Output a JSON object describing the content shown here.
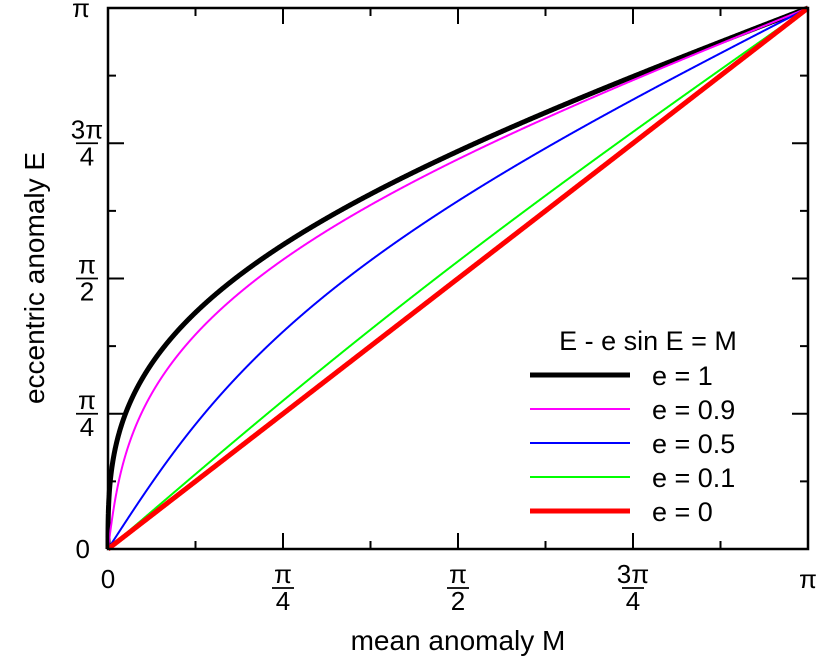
{
  "chart_data": {
    "type": "line",
    "title": "",
    "xlabel": "mean anomaly M",
    "ylabel": "eccentric anomaly E",
    "xlim": [
      0,
      3.14159265
    ],
    "ylim": [
      0,
      3.14159265
    ],
    "grid": false,
    "legend": {
      "position": "bottom-right",
      "title": "E - e sin E = M"
    },
    "x_ticks": [
      {
        "value": 0,
        "label": "0",
        "num": "",
        "den": ""
      },
      {
        "value": 0.785398,
        "label": "",
        "num": "π",
        "den": "4"
      },
      {
        "value": 1.570796,
        "label": "",
        "num": "π",
        "den": "2"
      },
      {
        "value": 2.356194,
        "label": "",
        "num": "3π",
        "den": "4"
      },
      {
        "value": 3.141593,
        "label": "π",
        "num": "",
        "den": ""
      }
    ],
    "y_ticks": [
      {
        "value": 0,
        "label": "0",
        "num": "",
        "den": ""
      },
      {
        "value": 0.785398,
        "label": "",
        "num": "π",
        "den": "4"
      },
      {
        "value": 1.570796,
        "label": "",
        "num": "π",
        "den": "2"
      },
      {
        "value": 2.356194,
        "label": "",
        "num": "3π",
        "den": "4"
      },
      {
        "value": 3.141593,
        "label": "π",
        "num": "",
        "den": ""
      }
    ],
    "series": [
      {
        "name": "e = 1",
        "eccentricity": 1,
        "color": "#000000",
        "width": 5
      },
      {
        "name": "e = 0.9",
        "eccentricity": 0.9,
        "color": "#ff00ff",
        "width": 2
      },
      {
        "name": "e = 0.5",
        "eccentricity": 0.5,
        "color": "#0000ff",
        "width": 2
      },
      {
        "name": "e = 0.1",
        "eccentricity": 0.1,
        "color": "#00ff00",
        "width": 2
      },
      {
        "name": "e = 0",
        "eccentricity": 0,
        "color": "#ff0000",
        "width": 5
      }
    ]
  }
}
